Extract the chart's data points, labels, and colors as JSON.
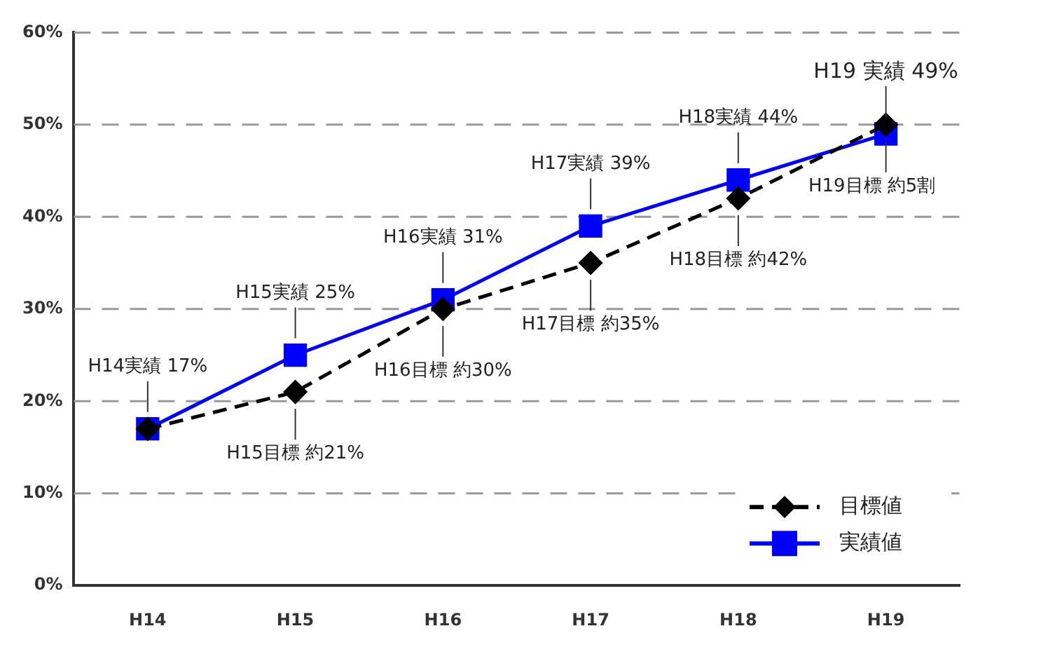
{
  "chart_data": {
    "type": "line",
    "categories": [
      "H14",
      "H15",
      "H16",
      "H17",
      "H18",
      "H19"
    ],
    "series": [
      {
        "name": "目標値",
        "color": "#000000",
        "values": [
          17,
          21,
          30,
          35,
          42,
          50
        ],
        "marker": "diamond",
        "line_style": "dashed"
      },
      {
        "name": "実績値",
        "color": "#0000ff",
        "values": [
          17,
          25,
          31,
          39,
          44,
          49
        ],
        "marker": "square",
        "line_style": "solid"
      }
    ],
    "ylim": [
      0,
      60
    ],
    "yticks": [
      {
        "value": 0,
        "label": "0%"
      },
      {
        "value": 10,
        "label": "10%"
      },
      {
        "value": 20,
        "label": "20%"
      },
      {
        "value": 30,
        "label": "30%"
      },
      {
        "value": 40,
        "label": "40%"
      },
      {
        "value": 50,
        "label": "50%"
      },
      {
        "value": 60,
        "label": "60%"
      }
    ],
    "grid": "y",
    "legend": "bottom right",
    "annotations": [
      {
        "text": "H14実績 17%",
        "x": "H14",
        "y": 17
      },
      {
        "text": "H15実績 25%",
        "x": "H15",
        "y": 25
      },
      {
        "text": "H15目標 約21%",
        "x": "H15",
        "y": 21
      },
      {
        "text": "H16実績 31%",
        "x": "H16",
        "y": 31
      },
      {
        "text": "H16目標 約30%",
        "x": "H16",
        "y": 30
      },
      {
        "text": "H17実績 39%",
        "x": "H17",
        "y": 39
      },
      {
        "text": "H17目標 約35%",
        "x": "H17",
        "y": 35
      },
      {
        "text": "H18実績 44%",
        "x": "H18",
        "y": 44
      },
      {
        "text": "H18目標 約42%",
        "x": "H18",
        "y": 42
      },
      {
        "text": "H19 実績 49%",
        "x": "H19",
        "y": 49
      },
      {
        "text": "H19目標 約5割",
        "x": "H19",
        "y": 50
      }
    ]
  }
}
